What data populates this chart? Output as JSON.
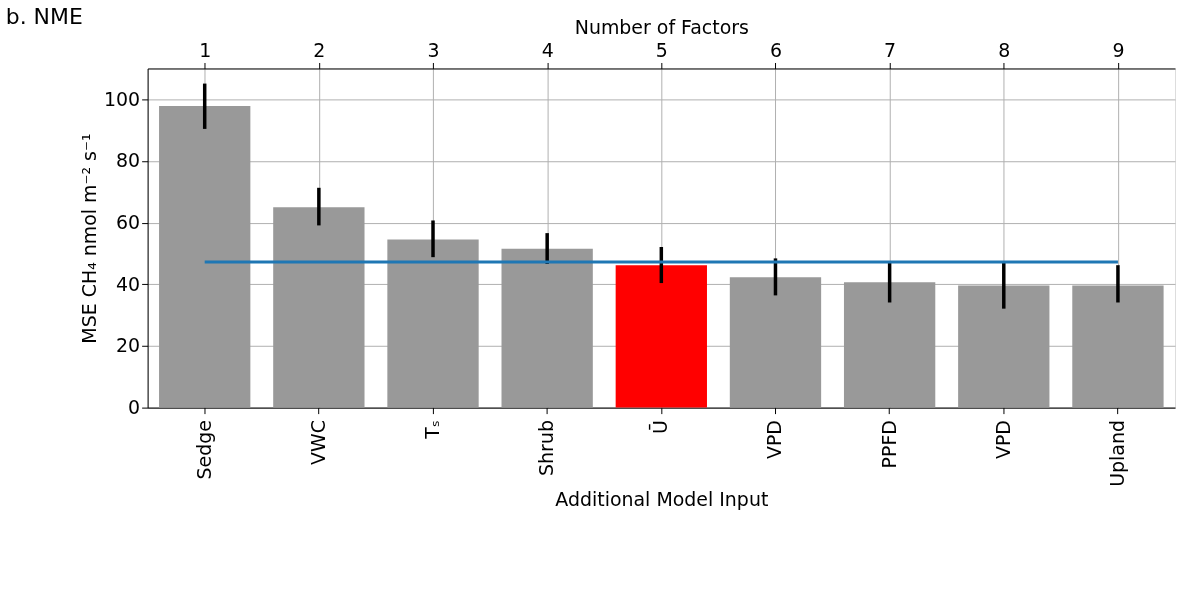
{
  "chart_data": {
    "type": "bar",
    "title": "b. NME",
    "xlabel": "Additional Model Input",
    "ylabel": "MSE CH₄ nmol m⁻² s⁻¹",
    "x2label": "Number of Factors",
    "categories": [
      "Sedge",
      "VWC",
      "Tₛ",
      "Shrub",
      "Ū",
      "VPD",
      "PPFD",
      "VPD",
      "Upland"
    ],
    "series": [
      {
        "colors": [
          "#999999",
          "#999999",
          "#999999",
          "#999999",
          "#ff0000",
          "#999999",
          "#999999",
          "#999999",
          "#999999"
        ],
        "values": [
          97.8,
          65,
          54.5,
          51.5,
          46.2,
          42.3,
          40.7,
          39.6,
          39.6
        ],
        "errors": [
          [
            90.4,
            105.1
          ],
          [
            59.1,
            71.3
          ],
          [
            48.8,
            60.7
          ],
          [
            46.6,
            56.6
          ],
          [
            40.4,
            52.1
          ],
          [
            36.4,
            48.4
          ],
          [
            34.1,
            47.5
          ],
          [
            32.1,
            46.9
          ],
          [
            34.1,
            46.2
          ]
        ]
      },
      {
        "type": "line",
        "color": "#1f77b4",
        "values": [
          47.2,
          47.2,
          47.2,
          47.2,
          47.2,
          47.2,
          47.2,
          47.2,
          47.2
        ]
      }
    ],
    "ylim": [
      0,
      110
    ],
    "yticks": [
      0,
      20,
      40,
      60,
      80,
      100
    ],
    "x2lim": [
      0.5,
      9.5
    ],
    "x2ticks": [
      1,
      2,
      3,
      4,
      5,
      6,
      7,
      8,
      9
    ],
    "grid": true
  }
}
